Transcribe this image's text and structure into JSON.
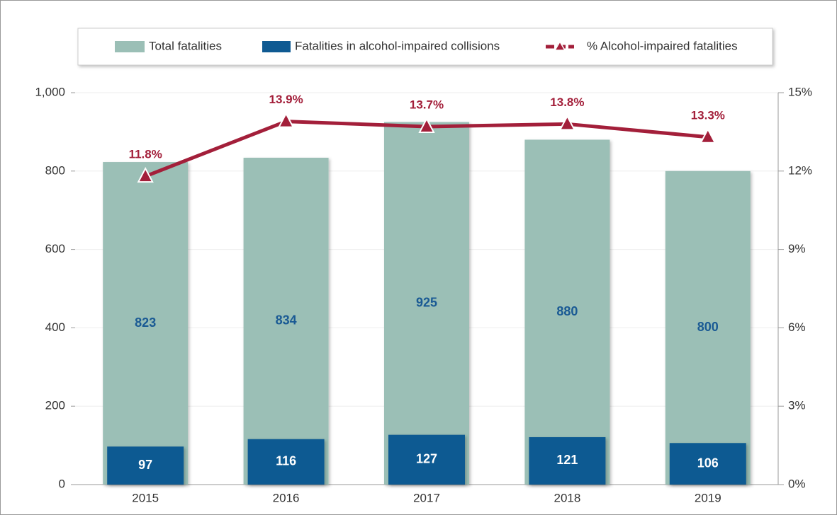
{
  "chart_data": {
    "type": "bar",
    "categories": [
      "2015",
      "2016",
      "2017",
      "2018",
      "2019"
    ],
    "series": [
      {
        "name": "Total fatalities",
        "color": "#9bbfb6",
        "values": [
          823,
          834,
          925,
          880,
          800
        ]
      },
      {
        "name": "Fatalities in alcohol-impaired collisions",
        "color": "#0f5a92",
        "values": [
          97,
          116,
          127,
          121,
          106
        ]
      },
      {
        "name": "% Alcohol-impaired fatalities",
        "color": "#a31f3a",
        "type": "line",
        "axis": "y2",
        "values": [
          11.8,
          13.9,
          13.7,
          13.8,
          13.3
        ],
        "value_labels": [
          "11.8%",
          "13.9%",
          "13.7%",
          "13.8%",
          "13.3%"
        ]
      }
    ],
    "ylim": [
      0,
      1000
    ],
    "yticks": [
      0,
      200,
      400,
      600,
      800,
      {
        "value": 1000,
        "label": "1,000"
      }
    ],
    "y2lim": [
      0,
      15
    ],
    "y2ticks": [
      {
        "value": 0,
        "label": "0%"
      },
      {
        "value": 3,
        "label": "3%"
      },
      {
        "value": 6,
        "label": "6%"
      },
      {
        "value": 9,
        "label": "9%"
      },
      {
        "value": 12,
        "label": "12%"
      },
      {
        "value": 15,
        "label": "15%"
      }
    ],
    "grid": true,
    "legend": "top"
  }
}
